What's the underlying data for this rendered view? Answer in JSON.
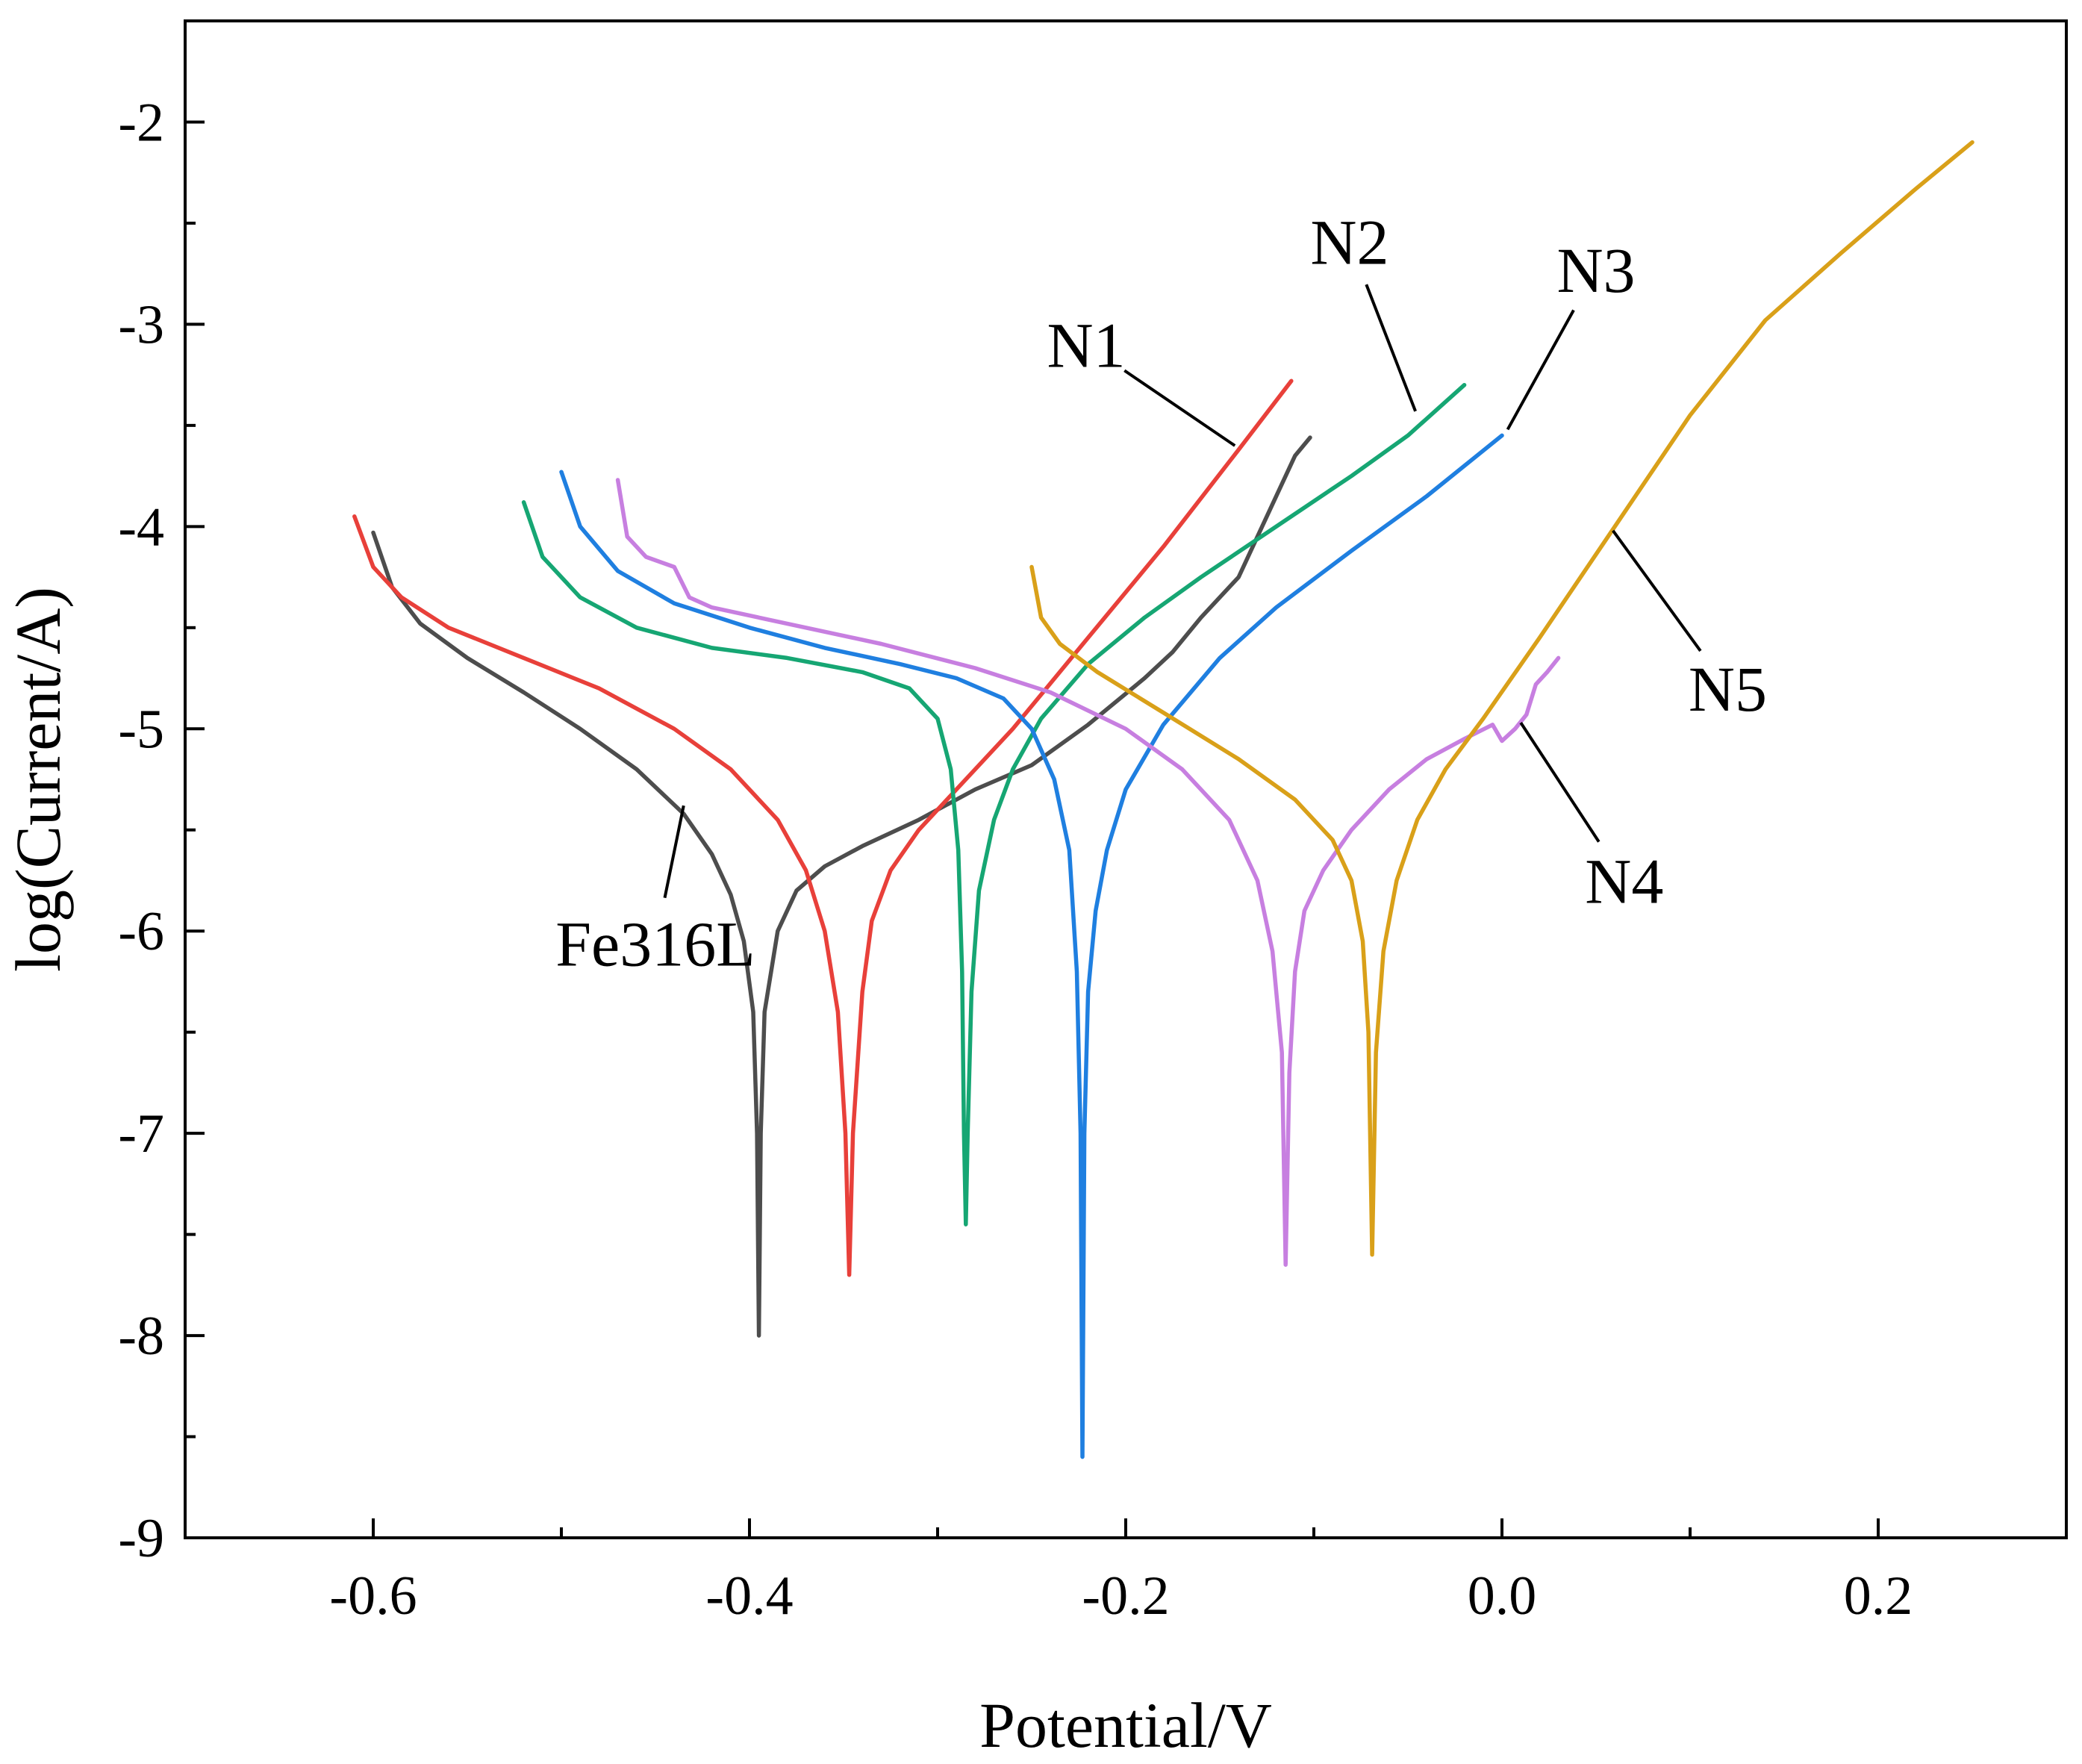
{
  "chart_data": {
    "type": "line",
    "title": "",
    "xlabel": "Potential/V",
    "ylabel": "log(Current/A)",
    "xlim": [
      -0.7,
      0.3
    ],
    "ylim": [
      -9,
      -1.5
    ],
    "x_ticks": [
      -0.6,
      -0.4,
      -0.2,
      0.0,
      0.2
    ],
    "x_tick_labels": [
      "-0.6",
      "-0.4",
      "-0.2",
      "0.0",
      "0.2"
    ],
    "y_ticks": [
      -9,
      -8,
      -7,
      -6,
      -5,
      -4,
      -3,
      -2
    ],
    "y_tick_labels": [
      "-9",
      "-8",
      "-7",
      "-6",
      "-5",
      "-4",
      "-3",
      "-2"
    ],
    "grid": false,
    "series": [
      {
        "name": "Fe316L",
        "color": "#4d4d4d",
        "points": [
          [
            -0.6,
            -4.03
          ],
          [
            -0.59,
            -4.3
          ],
          [
            -0.575,
            -4.48
          ],
          [
            -0.55,
            -4.65
          ],
          [
            -0.52,
            -4.82
          ],
          [
            -0.49,
            -5.0
          ],
          [
            -0.46,
            -5.2
          ],
          [
            -0.435,
            -5.42
          ],
          [
            -0.42,
            -5.62
          ],
          [
            -0.41,
            -5.82
          ],
          [
            -0.403,
            -6.05
          ],
          [
            -0.398,
            -6.4
          ],
          [
            -0.396,
            -7.0
          ],
          [
            -0.395,
            -8.0
          ],
          [
            -0.394,
            -7.0
          ],
          [
            -0.392,
            -6.4
          ],
          [
            -0.385,
            -6.0
          ],
          [
            -0.375,
            -5.8
          ],
          [
            -0.36,
            -5.68
          ],
          [
            -0.34,
            -5.58
          ],
          [
            -0.31,
            -5.45
          ],
          [
            -0.28,
            -5.3
          ],
          [
            -0.25,
            -5.18
          ],
          [
            -0.22,
            -4.98
          ],
          [
            -0.19,
            -4.75
          ],
          [
            -0.175,
            -4.62
          ],
          [
            -0.16,
            -4.45
          ],
          [
            -0.14,
            -4.25
          ],
          [
            -0.12,
            -3.85
          ],
          [
            -0.11,
            -3.65
          ],
          [
            -0.102,
            -3.56
          ]
        ]
      },
      {
        "name": "N1",
        "color": "#e8403a",
        "points": [
          [
            -0.61,
            -3.95
          ],
          [
            -0.6,
            -4.2
          ],
          [
            -0.585,
            -4.35
          ],
          [
            -0.56,
            -4.5
          ],
          [
            -0.52,
            -4.65
          ],
          [
            -0.48,
            -4.8
          ],
          [
            -0.44,
            -5.0
          ],
          [
            -0.41,
            -5.2
          ],
          [
            -0.385,
            -5.45
          ],
          [
            -0.37,
            -5.7
          ],
          [
            -0.36,
            -6.0
          ],
          [
            -0.353,
            -6.4
          ],
          [
            -0.349,
            -7.0
          ],
          [
            -0.347,
            -7.7
          ],
          [
            -0.345,
            -7.0
          ],
          [
            -0.34,
            -6.3
          ],
          [
            -0.335,
            -5.95
          ],
          [
            -0.325,
            -5.7
          ],
          [
            -0.31,
            -5.5
          ],
          [
            -0.29,
            -5.3
          ],
          [
            -0.26,
            -5.0
          ],
          [
            -0.22,
            -4.55
          ],
          [
            -0.18,
            -4.1
          ],
          [
            -0.14,
            -3.62
          ],
          [
            -0.112,
            -3.28
          ]
        ]
      },
      {
        "name": "N2",
        "color": "#16a673",
        "points": [
          [
            -0.52,
            -3.88
          ],
          [
            -0.51,
            -4.15
          ],
          [
            -0.49,
            -4.35
          ],
          [
            -0.46,
            -4.5
          ],
          [
            -0.42,
            -4.6
          ],
          [
            -0.38,
            -4.65
          ],
          [
            -0.34,
            -4.72
          ],
          [
            -0.315,
            -4.8
          ],
          [
            -0.3,
            -4.95
          ],
          [
            -0.293,
            -5.2
          ],
          [
            -0.289,
            -5.6
          ],
          [
            -0.287,
            -6.2
          ],
          [
            -0.286,
            -7.0
          ],
          [
            -0.285,
            -7.45
          ],
          [
            -0.284,
            -7.0
          ],
          [
            -0.282,
            -6.3
          ],
          [
            -0.278,
            -5.8
          ],
          [
            -0.27,
            -5.45
          ],
          [
            -0.26,
            -5.2
          ],
          [
            -0.245,
            -4.95
          ],
          [
            -0.22,
            -4.68
          ],
          [
            -0.19,
            -4.45
          ],
          [
            -0.16,
            -4.25
          ],
          [
            -0.12,
            -4.0
          ],
          [
            -0.08,
            -3.75
          ],
          [
            -0.05,
            -3.55
          ],
          [
            -0.02,
            -3.3
          ]
        ]
      },
      {
        "name": "N3",
        "color": "#1f7fe0",
        "points": [
          [
            -0.5,
            -3.73
          ],
          [
            -0.49,
            -4.0
          ],
          [
            -0.47,
            -4.22
          ],
          [
            -0.44,
            -4.38
          ],
          [
            -0.4,
            -4.5
          ],
          [
            -0.36,
            -4.6
          ],
          [
            -0.32,
            -4.68
          ],
          [
            -0.29,
            -4.75
          ],
          [
            -0.265,
            -4.85
          ],
          [
            -0.25,
            -5.0
          ],
          [
            -0.238,
            -5.25
          ],
          [
            -0.23,
            -5.6
          ],
          [
            -0.226,
            -6.2
          ],
          [
            -0.224,
            -7.0
          ],
          [
            -0.223,
            -8.6
          ],
          [
            -0.222,
            -7.0
          ],
          [
            -0.22,
            -6.3
          ],
          [
            -0.216,
            -5.9
          ],
          [
            -0.21,
            -5.6
          ],
          [
            -0.2,
            -5.3
          ],
          [
            -0.18,
            -4.98
          ],
          [
            -0.15,
            -4.65
          ],
          [
            -0.12,
            -4.4
          ],
          [
            -0.08,
            -4.12
          ],
          [
            -0.04,
            -3.85
          ],
          [
            0.0,
            -3.55
          ]
        ]
      },
      {
        "name": "N4",
        "color": "#c77fe0",
        "points": [
          [
            -0.47,
            -3.77
          ],
          [
            -0.465,
            -4.05
          ],
          [
            -0.455,
            -4.15
          ],
          [
            -0.44,
            -4.2
          ],
          [
            -0.432,
            -4.35
          ],
          [
            -0.42,
            -4.4
          ],
          [
            -0.38,
            -4.48
          ],
          [
            -0.33,
            -4.58
          ],
          [
            -0.28,
            -4.7
          ],
          [
            -0.24,
            -4.82
          ],
          [
            -0.2,
            -5.0
          ],
          [
            -0.17,
            -5.2
          ],
          [
            -0.145,
            -5.45
          ],
          [
            -0.13,
            -5.75
          ],
          [
            -0.122,
            -6.1
          ],
          [
            -0.117,
            -6.6
          ],
          [
            -0.115,
            -7.65
          ],
          [
            -0.113,
            -6.7
          ],
          [
            -0.11,
            -6.2
          ],
          [
            -0.105,
            -5.9
          ],
          [
            -0.095,
            -5.7
          ],
          [
            -0.08,
            -5.5
          ],
          [
            -0.06,
            -5.3
          ],
          [
            -0.04,
            -5.15
          ],
          [
            -0.02,
            -5.05
          ],
          [
            -0.005,
            -4.98
          ],
          [
            0.0,
            -5.06
          ],
          [
            0.007,
            -5.0
          ],
          [
            0.013,
            -4.93
          ],
          [
            0.018,
            -4.78
          ],
          [
            0.024,
            -4.72
          ],
          [
            0.03,
            -4.65
          ]
        ]
      },
      {
        "name": "N5",
        "color": "#d9a019",
        "points": [
          [
            -0.25,
            -4.2
          ],
          [
            -0.245,
            -4.45
          ],
          [
            -0.235,
            -4.58
          ],
          [
            -0.215,
            -4.72
          ],
          [
            -0.18,
            -4.92
          ],
          [
            -0.14,
            -5.15
          ],
          [
            -0.11,
            -5.35
          ],
          [
            -0.09,
            -5.55
          ],
          [
            -0.08,
            -5.75
          ],
          [
            -0.074,
            -6.05
          ],
          [
            -0.071,
            -6.5
          ],
          [
            -0.069,
            -7.6
          ],
          [
            -0.067,
            -6.6
          ],
          [
            -0.063,
            -6.1
          ],
          [
            -0.056,
            -5.75
          ],
          [
            -0.045,
            -5.45
          ],
          [
            -0.03,
            -5.2
          ],
          [
            -0.01,
            -4.95
          ],
          [
            0.02,
            -4.55
          ],
          [
            0.06,
            -4.0
          ],
          [
            0.1,
            -3.45
          ],
          [
            0.14,
            -2.98
          ],
          [
            0.18,
            -2.65
          ],
          [
            0.22,
            -2.33
          ],
          [
            0.25,
            -2.1
          ]
        ]
      }
    ],
    "annotations": [
      {
        "label": "Fe316L",
        "series": "Fe316L",
        "anchor_point": [
          -0.435,
          -5.38
        ],
        "text_point": [
          -0.45,
          -6.06
        ]
      },
      {
        "label": "N1",
        "series": "N1",
        "anchor_point": [
          -0.142,
          -3.6
        ],
        "text_point": [
          -0.221,
          -3.1
        ]
      },
      {
        "label": "N2",
        "series": "N2",
        "anchor_point": [
          -0.046,
          -3.43
        ],
        "text_point": [
          -0.081,
          -2.59
        ]
      },
      {
        "label": "N3",
        "series": "N3",
        "anchor_point": [
          0.003,
          -3.52
        ],
        "text_point": [
          0.05,
          -2.73
        ]
      },
      {
        "label": "N4",
        "series": "N4",
        "anchor_point": [
          0.01,
          -4.97
        ],
        "text_point": [
          0.065,
          -5.75
        ]
      },
      {
        "label": "N5",
        "series": "N5",
        "anchor_point": [
          0.059,
          -4.02
        ],
        "text_point": [
          0.12,
          -4.8
        ]
      }
    ]
  }
}
